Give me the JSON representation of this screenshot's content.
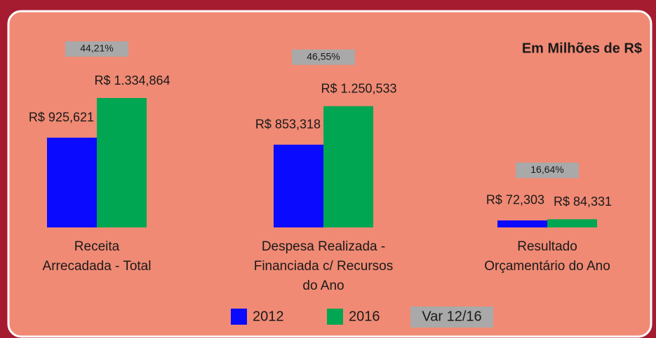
{
  "chart_data": {
    "type": "bar",
    "title": "Em Milhões de R$",
    "categories": [
      [
        "Receita",
        "Arrecadada - Total"
      ],
      [
        "Despesa Realizada -",
        "Financiada c/ Recursos",
        "do Ano"
      ],
      [
        "Resultado",
        "Orçamentário do Ano"
      ]
    ],
    "series": [
      {
        "name": "2012",
        "color": "#0a0aff",
        "values": [
          925.621,
          853.318,
          72.303
        ],
        "value_labels": [
          "R$ 925,621",
          "R$ 853,318",
          "R$ 72,303"
        ]
      },
      {
        "name": "2016",
        "color": "#00a651",
        "values": [
          1334.864,
          1250.533,
          84.331
        ],
        "value_labels": [
          "R$ 1.334,864",
          "R$ 1.250,533",
          "R$ 84,331"
        ]
      }
    ],
    "variation": {
      "name": "Var 12/16",
      "values": [
        44.21,
        46.55,
        16.64
      ],
      "value_labels": [
        "44,21%",
        "46,55%",
        "16,64%"
      ]
    },
    "ylim": [
      0,
      1400
    ]
  }
}
